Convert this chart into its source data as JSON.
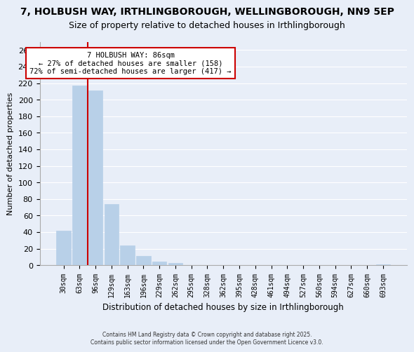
{
  "title1": "7, HOLBUSH WAY, IRTHLINGBOROUGH, WELLINGBOROUGH, NN9 5EP",
  "title2": "Size of property relative to detached houses in Irthlingborough",
  "xlabel": "Distribution of detached houses by size in Irthlingborough",
  "ylabel": "Number of detached properties",
  "bar_labels": [
    "30sqm",
    "63sqm",
    "96sqm",
    "129sqm",
    "163sqm",
    "196sqm",
    "229sqm",
    "262sqm",
    "295sqm",
    "328sqm",
    "362sqm",
    "395sqm",
    "428sqm",
    "461sqm",
    "494sqm",
    "527sqm",
    "560sqm",
    "594sqm",
    "627sqm",
    "660sqm",
    "693sqm"
  ],
  "bar_values": [
    42,
    217,
    211,
    74,
    24,
    11,
    4,
    3,
    0,
    0,
    0,
    0,
    0,
    0,
    0,
    0,
    0,
    0,
    0,
    0,
    1
  ],
  "bar_color": "#b8d0e8",
  "bar_edge_color": "#b8d0e8",
  "vline_color": "#cc0000",
  "ylim": [
    0,
    270
  ],
  "yticks": [
    0,
    20,
    40,
    60,
    80,
    100,
    120,
    140,
    160,
    180,
    200,
    220,
    240,
    260
  ],
  "annotation_title": "7 HOLBUSH WAY: 86sqm",
  "annotation_line1": "← 27% of detached houses are smaller (158)",
  "annotation_line2": "72% of semi-detached houses are larger (417) →",
  "annotation_box_color": "#ffffff",
  "annotation_box_edge": "#cc0000",
  "footer1": "Contains HM Land Registry data © Crown copyright and database right 2025.",
  "footer2": "Contains public sector information licensed under the Open Government Licence v3.0.",
  "bg_color": "#e8eef8",
  "grid_color": "#ffffff",
  "title_fontsize": 10,
  "subtitle_fontsize": 9
}
